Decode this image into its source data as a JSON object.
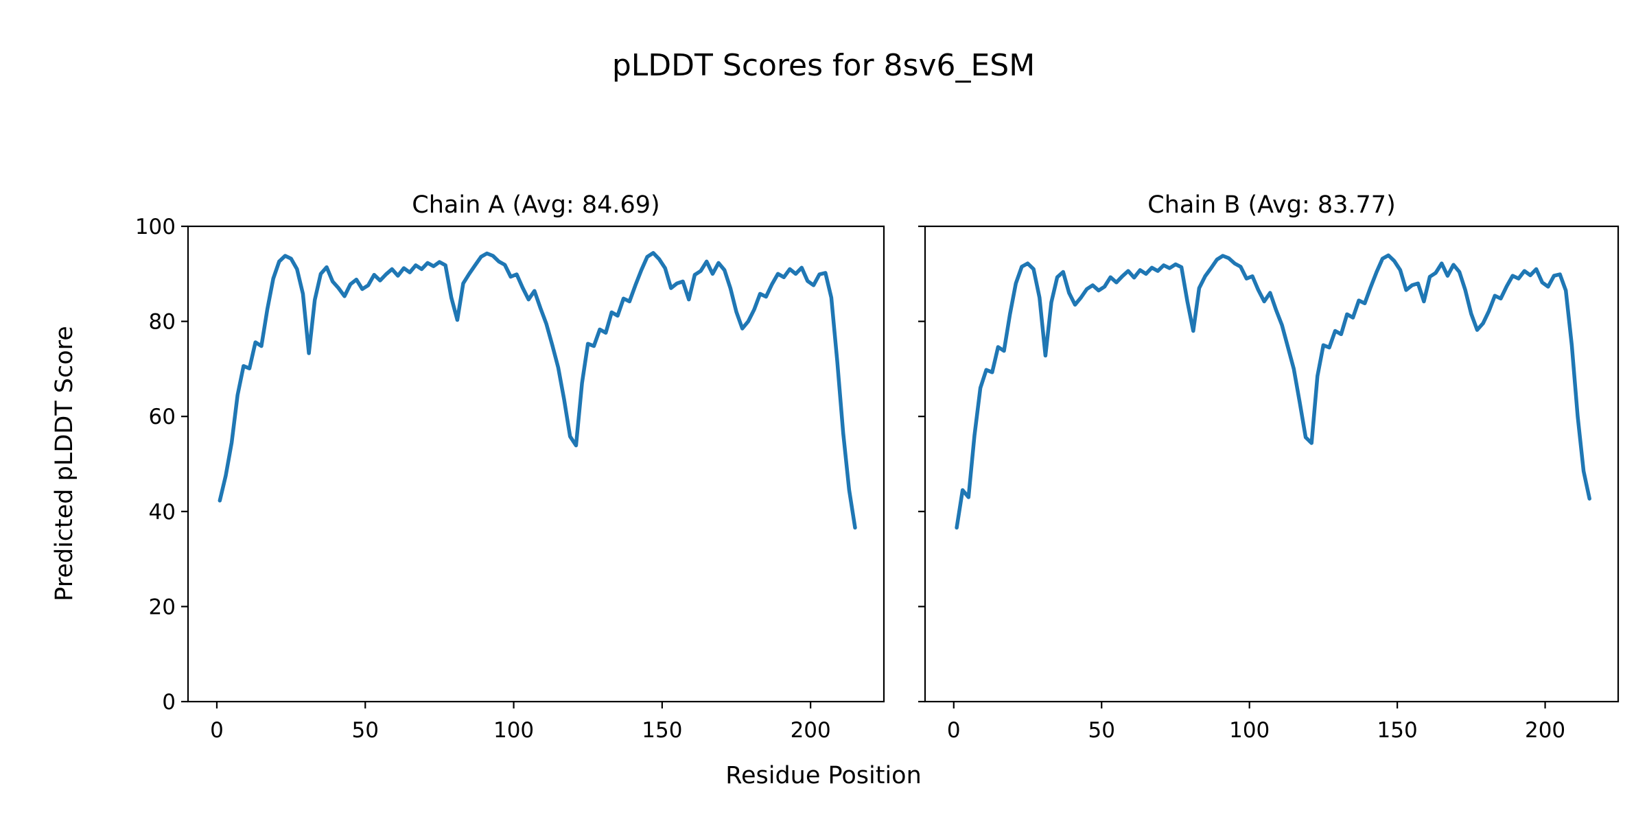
{
  "figure": {
    "title": "pLDDT Scores for 8sv6_ESM",
    "xlabel": "Residue Position",
    "ylabel": "Predicted pLDDT Score",
    "background_color": "#ffffff",
    "line_color": "#1f77b4",
    "axis_color": "#000000"
  },
  "chart_data": [
    {
      "type": "line",
      "id": "chain-a",
      "title": "Chain A (Avg: 84.69)",
      "avg": 84.69,
      "xlim": [
        -9.7,
        224.7
      ],
      "ylim": [
        0,
        100
      ],
      "xticks": [
        0,
        50,
        100,
        150,
        200
      ],
      "yticks": [
        0,
        20,
        40,
        60,
        80,
        100
      ],
      "ytick_labels": [
        "0",
        "20",
        "40",
        "60",
        "80",
        "100"
      ],
      "legend": "none",
      "grid": false,
      "x": [
        1,
        3,
        5,
        7,
        9,
        11,
        13,
        15,
        17,
        19,
        21,
        23,
        25,
        27,
        29,
        31,
        33,
        35,
        37,
        39,
        41,
        43,
        45,
        47,
        49,
        51,
        53,
        55,
        57,
        59,
        61,
        63,
        65,
        67,
        69,
        71,
        73,
        75,
        77,
        79,
        81,
        83,
        85,
        87,
        89,
        91,
        93,
        95,
        97,
        99,
        101,
        103,
        105,
        107,
        109,
        111,
        113,
        115,
        117,
        119,
        121,
        123,
        125,
        127,
        129,
        131,
        133,
        135,
        137,
        139,
        141,
        143,
        145,
        147,
        149,
        151,
        153,
        155,
        157,
        159,
        161,
        163,
        165,
        167,
        169,
        171,
        173,
        175,
        177,
        179,
        181,
        183,
        185,
        187,
        189,
        191,
        193,
        195,
        197,
        199,
        201,
        203,
        205,
        207,
        209,
        211,
        213,
        215
      ],
      "y": [
        42.3,
        47.5,
        54.5,
        64.5,
        70.6,
        70.1,
        75.6,
        74.8,
        82.5,
        89.0,
        92.6,
        93.8,
        93.2,
        91.0,
        85.8,
        73.3,
        84.5,
        90.0,
        91.4,
        88.4,
        87.0,
        85.3,
        87.8,
        88.8,
        86.8,
        87.6,
        89.8,
        88.6,
        89.9,
        91.0,
        89.6,
        91.2,
        90.3,
        91.8,
        91.0,
        92.3,
        91.6,
        92.5,
        91.8,
        85.0,
        80.3,
        88.0,
        90.0,
        91.8,
        93.6,
        94.3,
        93.8,
        92.6,
        91.9,
        89.4,
        89.9,
        87.1,
        84.6,
        86.4,
        82.8,
        79.5,
        75.0,
        70.3,
        63.5,
        55.8,
        53.9,
        67.0,
        75.3,
        74.8,
        78.3,
        77.6,
        81.9,
        81.2,
        84.8,
        84.2,
        87.6,
        90.8,
        93.6,
        94.4,
        93.1,
        91.2,
        87.0,
        88.0,
        88.4,
        84.6,
        89.8,
        90.6,
        92.6,
        90.0,
        92.3,
        90.8,
        87.0,
        82.0,
        78.5,
        80.0,
        82.5,
        85.8,
        85.2,
        87.8,
        90.0,
        89.3,
        91.0,
        90.0,
        91.3,
        88.5,
        87.6,
        89.9,
        90.2,
        85.0,
        71.5,
        56.5,
        44.5,
        36.6
      ]
    },
    {
      "type": "line",
      "id": "chain-b",
      "title": "Chain B (Avg: 83.77)",
      "avg": 83.77,
      "xlim": [
        -9.7,
        224.7
      ],
      "ylim": [
        0,
        100
      ],
      "xticks": [
        0,
        50,
        100,
        150,
        200
      ],
      "yticks": [
        0,
        20,
        40,
        60,
        80,
        100
      ],
      "ytick_labels": [],
      "legend": "none",
      "grid": false,
      "x": [
        1,
        3,
        5,
        7,
        9,
        11,
        13,
        15,
        17,
        19,
        21,
        23,
        25,
        27,
        29,
        31,
        33,
        35,
        37,
        39,
        41,
        43,
        45,
        47,
        49,
        51,
        53,
        55,
        57,
        59,
        61,
        63,
        65,
        67,
        69,
        71,
        73,
        75,
        77,
        79,
        81,
        83,
        85,
        87,
        89,
        91,
        93,
        95,
        97,
        99,
        101,
        103,
        105,
        107,
        109,
        111,
        113,
        115,
        117,
        119,
        121,
        123,
        125,
        127,
        129,
        131,
        133,
        135,
        137,
        139,
        141,
        143,
        145,
        147,
        149,
        151,
        153,
        155,
        157,
        159,
        161,
        163,
        165,
        167,
        169,
        171,
        173,
        175,
        177,
        179,
        181,
        183,
        185,
        187,
        189,
        191,
        193,
        195,
        197,
        199,
        201,
        203,
        205,
        207,
        209,
        211,
        213,
        215
      ],
      "y": [
        36.6,
        44.5,
        43.0,
        56.0,
        66.0,
        69.8,
        69.3,
        74.6,
        73.8,
        81.5,
        88.0,
        91.5,
        92.2,
        91.0,
        85.0,
        72.8,
        84.0,
        89.3,
        90.4,
        86.0,
        83.5,
        85.0,
        86.8,
        87.6,
        86.5,
        87.3,
        89.3,
        88.2,
        89.5,
        90.6,
        89.2,
        90.8,
        90.0,
        91.3,
        90.6,
        91.8,
        91.2,
        92.0,
        91.4,
        84.2,
        78.0,
        87.0,
        89.5,
        91.2,
        93.0,
        93.8,
        93.3,
        92.2,
        91.5,
        89.0,
        89.5,
        86.6,
        84.2,
        86.0,
        82.4,
        79.2,
        74.6,
        70.0,
        63.0,
        55.6,
        54.4,
        68.5,
        75.0,
        74.5,
        78.0,
        77.3,
        81.5,
        80.8,
        84.4,
        83.8,
        87.2,
        90.4,
        93.2,
        93.9,
        92.7,
        90.8,
        86.6,
        87.6,
        88.0,
        84.2,
        89.4,
        90.2,
        92.2,
        89.6,
        91.9,
        90.4,
        86.6,
        81.6,
        78.2,
        79.6,
        82.2,
        85.4,
        84.8,
        87.4,
        89.6,
        89.0,
        90.6,
        89.7,
        91.0,
        88.2,
        87.3,
        89.6,
        89.9,
        86.5,
        75.0,
        60.0,
        48.5,
        42.7
      ]
    }
  ]
}
